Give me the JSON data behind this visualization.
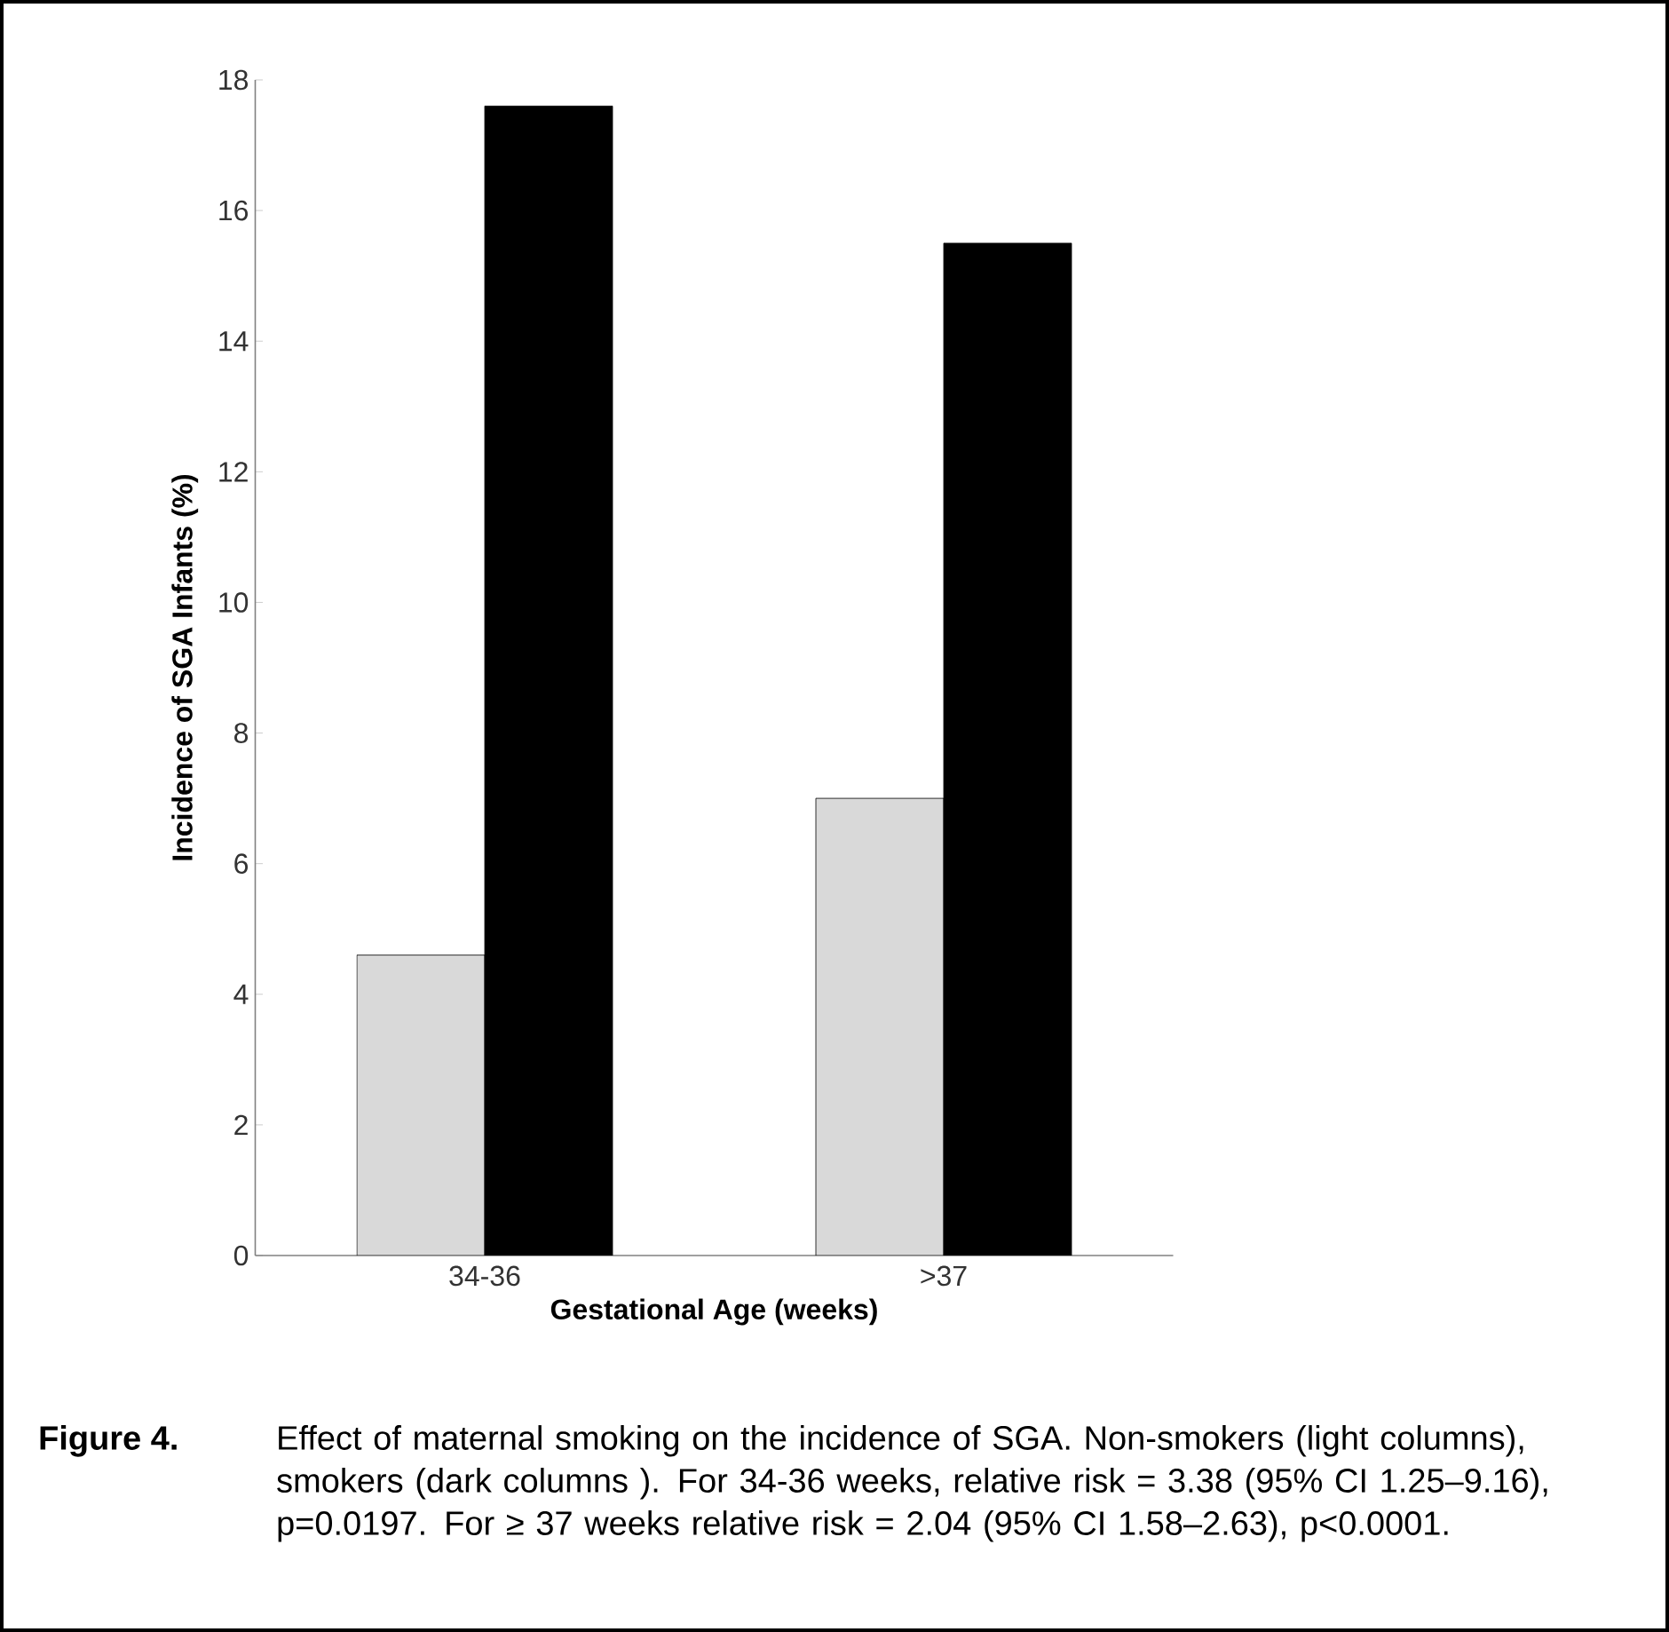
{
  "chart_data": {
    "type": "bar",
    "xlabel": "Gestational Age (weeks)",
    "ylabel": "Incidence of SGA Infants (%)",
    "categories": [
      "34-36",
      ">37"
    ],
    "series": [
      {
        "color": "#d9d9d9",
        "values": [
          4.6,
          7.0
        ]
      },
      {
        "color": "#000000",
        "values": [
          17.6,
          15.5
        ]
      }
    ],
    "ylim": [
      0,
      18
    ],
    "yticks": [
      0,
      2,
      4,
      6,
      8,
      10,
      12,
      14,
      16,
      18
    ],
    "grid": false,
    "annotations": [
      "Figure 4.",
      "Effect of maternal smoking on the incidence of SGA. Non-smokers (light columns), smokers (dark columns ). For 34-36 weeks, relative risk = 3.38 (95% CI 1.25–9.16), p=0.0197. For ≥ 37 weeks relative risk = 2.04 (95% CI 1.58–2.63), p<0.0001."
    ]
  }
}
